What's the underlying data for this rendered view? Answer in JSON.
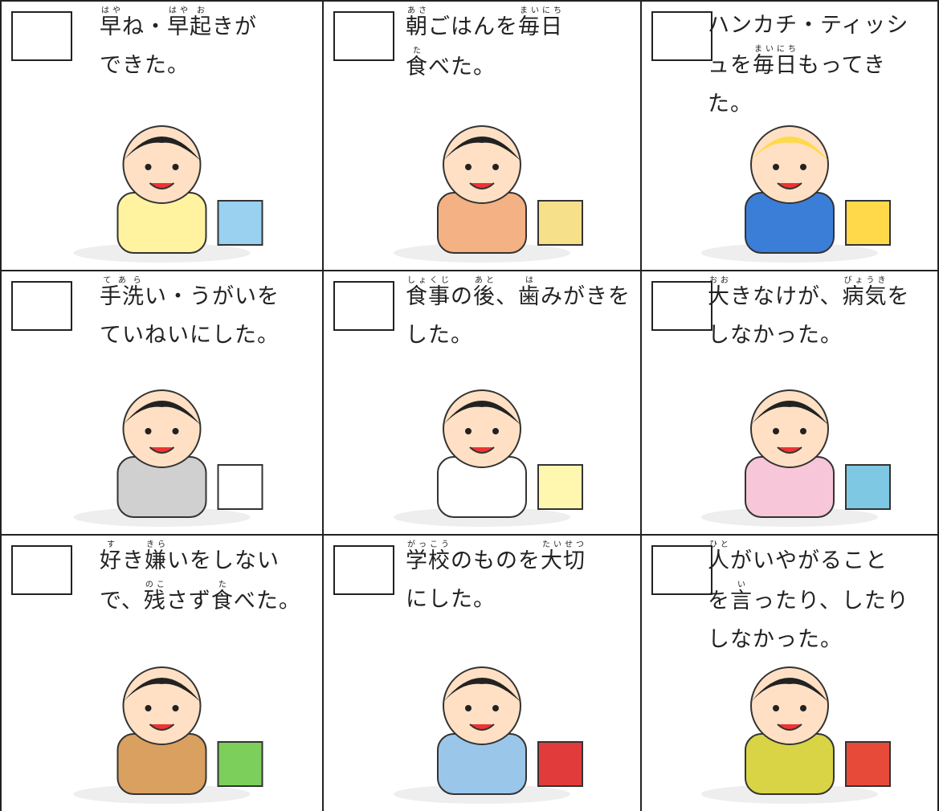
{
  "cells": [
    {
      "lines": [
        [
          {
            "text": "早",
            "ruby": "はや"
          },
          "ね・",
          {
            "text": "早",
            "ruby": "はや"
          },
          {
            "text": "起",
            "ruby": "お"
          },
          "きが"
        ],
        [
          "できた。"
        ]
      ]
    },
    {
      "lines": [
        [
          {
            "text": "朝",
            "ruby": "あさ"
          },
          "ごはんを",
          {
            "text": "毎日",
            "ruby": "まいにち"
          }
        ],
        [
          {
            "text": "食",
            "ruby": "た"
          },
          "べた。"
        ]
      ]
    },
    {
      "lines": [
        [
          "ハンカチ・ティッシ"
        ],
        [
          "ュを",
          {
            "text": "毎日",
            "ruby": "まいにち"
          },
          "もってき"
        ],
        [
          "た。"
        ]
      ]
    },
    {
      "lines": [
        [
          {
            "text": "手洗",
            "ruby": "てあら"
          },
          "い・うがいを"
        ],
        [
          "ていねいにした。"
        ]
      ]
    },
    {
      "lines": [
        [
          {
            "text": "食事",
            "ruby": "しょくじ"
          },
          "の",
          {
            "text": "後",
            "ruby": "あと"
          },
          "、",
          {
            "text": "歯",
            "ruby": "は"
          },
          "みがきを"
        ],
        [
          "した。"
        ]
      ]
    },
    {
      "lines": [
        [
          {
            "text": "大",
            "ruby": "おお"
          },
          "きなけが、",
          {
            "text": "病気",
            "ruby": "びょうき"
          },
          "を"
        ],
        [
          "しなかった。"
        ]
      ]
    },
    {
      "lines": [
        [
          {
            "text": "好",
            "ruby": "す"
          },
          "き",
          {
            "text": "嫌",
            "ruby": "きら"
          },
          "いをしない"
        ],
        [
          "で、",
          {
            "text": "残",
            "ruby": "のこ"
          },
          "さず",
          {
            "text": "食",
            "ruby": "た"
          },
          "べた。"
        ]
      ]
    },
    {
      "lines": [
        [
          {
            "text": "学校",
            "ruby": "がっこう"
          },
          "のものを",
          {
            "text": "大切",
            "ruby": "たいせつ"
          }
        ],
        [
          "にした。"
        ]
      ]
    },
    {
      "lines": [
        [
          {
            "text": "人",
            "ruby": "ひと"
          },
          "がいやがること"
        ],
        [
          "を",
          {
            "text": "言",
            "ruby": "い"
          },
          "ったり、したり"
        ],
        [
          "しなかった。"
        ]
      ]
    }
  ]
}
